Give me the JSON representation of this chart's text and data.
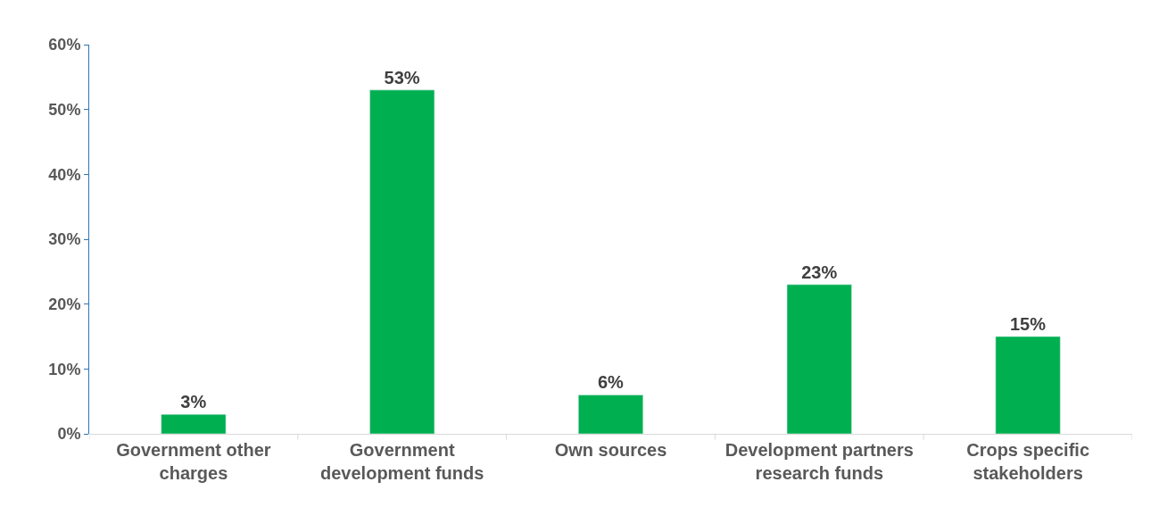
{
  "chart_data": {
    "type": "bar",
    "categories": [
      "Government other charges",
      "Government development funds",
      "Own sources",
      "Development partners research funds",
      "Crops specific stakeholders"
    ],
    "values": [
      3,
      53,
      6,
      23,
      15
    ],
    "color": "#00b050",
    "ylim": [
      0,
      60
    ],
    "yticks": [
      {
        "value": 0,
        "label": "0%"
      },
      {
        "value": 10,
        "label": "10%"
      },
      {
        "value": 20,
        "label": "20%"
      },
      {
        "value": 30,
        "label": "30%"
      },
      {
        "value": 40,
        "label": "40%"
      },
      {
        "value": 50,
        "label": "50%"
      },
      {
        "value": 60,
        "label": "60%"
      }
    ],
    "value_labels": [
      "3%",
      "53%",
      "6%",
      "23%",
      "15%"
    ]
  }
}
